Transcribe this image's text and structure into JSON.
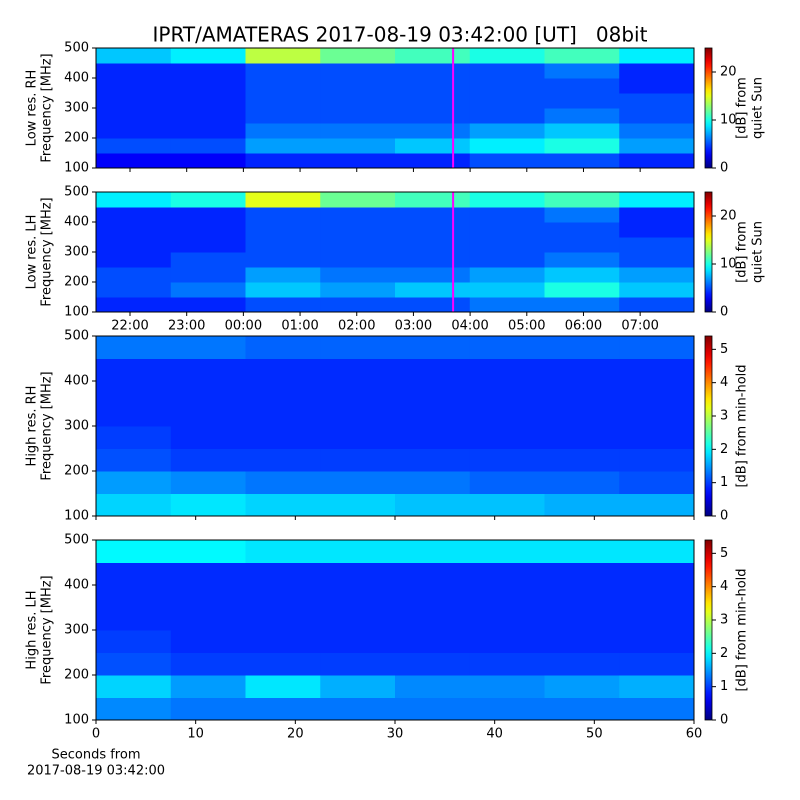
{
  "title": "IPRT/AMATERAS 2017-08-19 03:42:00 [UT]   08bit",
  "chart_data": [
    {
      "type": "heatmap",
      "colormap": "jet",
      "ylabel": [
        "Low res. RH",
        "Frequency [MHz]"
      ],
      "xlim": [
        21.4,
        31.95
      ],
      "xticks": [
        22,
        23,
        24,
        25,
        26,
        27,
        28,
        29,
        30,
        31
      ],
      "show_xtick_labels": false,
      "ylim": [
        100,
        500
      ],
      "yticks": [
        100,
        200,
        300,
        400,
        500
      ],
      "vline": 27.7,
      "vline_color": "#ff00ff",
      "clim": [
        0,
        25
      ],
      "cticks": [
        0,
        10,
        20
      ],
      "clabel": [
        "[dB] from",
        "quiet Sun"
      ],
      "z": [
        [
          3,
          3,
          4,
          4,
          4,
          5,
          5,
          4
        ],
        [
          5,
          5,
          7,
          7,
          8,
          9,
          10,
          7
        ],
        [
          4,
          4,
          6,
          6,
          6,
          7,
          8,
          6
        ],
        [
          4,
          4,
          5,
          5,
          5,
          5,
          6,
          5
        ],
        [
          4,
          4,
          5,
          5,
          5,
          5,
          5,
          5
        ],
        [
          4,
          4,
          5,
          5,
          5,
          5,
          5,
          4
        ],
        [
          4,
          4,
          5,
          5,
          5,
          5,
          6,
          4
        ],
        [
          8,
          9,
          14,
          12,
          11,
          10,
          11,
          9
        ]
      ]
    },
    {
      "type": "heatmap",
      "colormap": "jet",
      "ylabel": [
        "Low res. LH",
        "Frequency [MHz]"
      ],
      "xlim": [
        21.4,
        31.95
      ],
      "xticks": [
        {
          "value": 22,
          "label": "22:00"
        },
        {
          "value": 23,
          "label": "23:00"
        },
        {
          "value": 24,
          "label": "00:00"
        },
        {
          "value": 25,
          "label": "01:00"
        },
        {
          "value": 26,
          "label": "02:00"
        },
        {
          "value": 27,
          "label": "03:00"
        },
        {
          "value": 28,
          "label": "04:00"
        },
        {
          "value": 29,
          "label": "05:00"
        },
        {
          "value": 30,
          "label": "06:00"
        },
        {
          "value": 31,
          "label": "07:00"
        }
      ],
      "show_xtick_labels": true,
      "ylim": [
        100,
        500
      ],
      "yticks": [
        100,
        200,
        300,
        400,
        500
      ],
      "vline": 27.7,
      "vline_color": "#ff00ff",
      "clim": [
        0,
        25
      ],
      "cticks": [
        0,
        10,
        20
      ],
      "clabel": [
        "[dB] from",
        "quiet Sun"
      ],
      "z": [
        [
          4,
          4,
          5,
          5,
          5,
          6,
          6,
          5
        ],
        [
          5,
          6,
          8,
          7,
          8,
          8,
          10,
          8
        ],
        [
          5,
          5,
          7,
          6,
          6,
          7,
          8,
          7
        ],
        [
          4,
          5,
          5,
          5,
          5,
          5,
          6,
          5
        ],
        [
          4,
          4,
          5,
          5,
          5,
          5,
          5,
          5
        ],
        [
          4,
          4,
          5,
          5,
          5,
          5,
          5,
          4
        ],
        [
          4,
          4,
          5,
          5,
          5,
          5,
          6,
          4
        ],
        [
          9,
          10,
          15,
          12,
          11,
          10,
          11,
          9
        ]
      ]
    },
    {
      "type": "heatmap",
      "colormap": "jet",
      "ylabel": [
        "High res. RH",
        "Frequency [MHz]"
      ],
      "xlim": [
        0,
        60
      ],
      "xticks": [
        0,
        10,
        20,
        30,
        40,
        50,
        60
      ],
      "show_xtick_labels": false,
      "ylim": [
        100,
        500
      ],
      "yticks": [
        100,
        200,
        300,
        400,
        500
      ],
      "clim": [
        0,
        5.4
      ],
      "cticks": [
        0,
        1,
        2,
        3,
        4,
        5
      ],
      "clabel": [
        "[dB] from min-hold"
      ],
      "z": [
        [
          1.8,
          1.9,
          1.8,
          1.8,
          1.7,
          1.7,
          1.6,
          1.6
        ],
        [
          1.5,
          1.4,
          1.3,
          1.3,
          1.3,
          1.2,
          1.2,
          1.1
        ],
        [
          1.1,
          1.0,
          1.0,
          1.0,
          1.0,
          1.0,
          1.0,
          1.0
        ],
        [
          1.0,
          0.9,
          0.9,
          0.9,
          0.9,
          0.9,
          0.9,
          0.9
        ],
        [
          0.9,
          0.9,
          0.9,
          0.9,
          0.9,
          0.9,
          0.9,
          0.9
        ],
        [
          0.9,
          0.9,
          0.9,
          0.9,
          0.9,
          0.9,
          0.9,
          0.9
        ],
        [
          0.9,
          0.9,
          0.9,
          0.9,
          0.9,
          0.9,
          0.9,
          0.9
        ],
        [
          1.3,
          1.3,
          1.2,
          1.2,
          1.2,
          1.2,
          1.2,
          1.2
        ]
      ]
    },
    {
      "type": "heatmap",
      "colormap": "jet",
      "ylabel": [
        "High res. LH",
        "Frequency [MHz]"
      ],
      "xlim": [
        0,
        60
      ],
      "xticks": [
        0,
        10,
        20,
        30,
        40,
        50,
        60
      ],
      "show_xtick_labels": true,
      "xlabel": [
        "Seconds from",
        "2017-08-19 03:42:00"
      ],
      "ylim": [
        100,
        500
      ],
      "yticks": [
        100,
        200,
        300,
        400,
        500
      ],
      "clim": [
        0,
        5.4
      ],
      "cticks": [
        0,
        1,
        2,
        3,
        4,
        5
      ],
      "clabel": [
        "[dB] from min-hold"
      ],
      "z": [
        [
          1.4,
          1.3,
          1.3,
          1.3,
          1.3,
          1.3,
          1.3,
          1.3
        ],
        [
          1.8,
          1.5,
          1.9,
          1.6,
          1.4,
          1.4,
          1.5,
          1.6
        ],
        [
          1.1,
          1.0,
          1.0,
          1.0,
          1.0,
          1.0,
          1.0,
          1.0
        ],
        [
          1.0,
          0.9,
          0.9,
          0.9,
          0.9,
          0.9,
          0.9,
          0.9
        ],
        [
          0.9,
          0.9,
          0.9,
          0.9,
          0.9,
          0.9,
          0.9,
          0.9
        ],
        [
          0.9,
          0.9,
          0.9,
          0.9,
          0.9,
          0.9,
          0.9,
          0.9
        ],
        [
          0.9,
          0.9,
          0.9,
          0.9,
          0.9,
          0.9,
          0.9,
          0.9
        ],
        [
          2.0,
          2.0,
          1.9,
          1.9,
          1.9,
          1.9,
          1.9,
          1.9
        ]
      ]
    }
  ]
}
